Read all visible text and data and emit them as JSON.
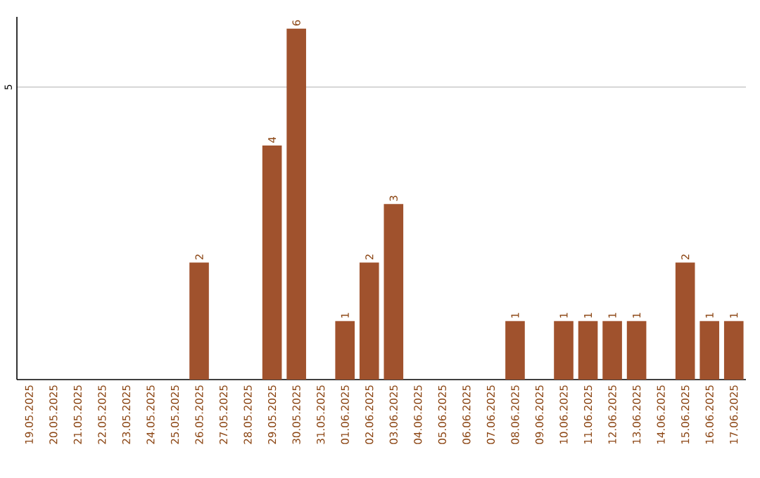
{
  "chart_data": {
    "type": "bar",
    "categories": [
      "19.05.2025",
      "20.05.2025",
      "21.05.2025",
      "22.05.2025",
      "23.05.2025",
      "24.05.2025",
      "25.05.2025",
      "26.05.2025",
      "27.05.2025",
      "28.05.2025",
      "29.05.2025",
      "30.05.2025",
      "31.05.2025",
      "01.06.2025",
      "02.06.2025",
      "03.06.2025",
      "04.06.2025",
      "05.06.2025",
      "06.06.2025",
      "07.06.2025",
      "08.06.2025",
      "09.06.2025",
      "10.06.2025",
      "11.06.2025",
      "12.06.2025",
      "13.06.2025",
      "14.06.2025",
      "15.06.2025",
      "16.06.2025",
      "17.06.2025"
    ],
    "values": [
      0,
      0,
      0,
      0,
      0,
      0,
      0,
      2,
      0,
      0,
      4,
      6,
      0,
      1,
      2,
      3,
      0,
      0,
      0,
      0,
      1,
      0,
      1,
      1,
      1,
      1,
      0,
      2,
      1,
      1
    ],
    "value_labels": [
      null,
      null,
      null,
      null,
      null,
      null,
      null,
      "2",
      null,
      null,
      "4",
      "6",
      null,
      "1",
      "2",
      "3",
      null,
      null,
      null,
      null,
      "1",
      null,
      "1",
      "1",
      "1",
      "1",
      null,
      "2",
      "1",
      "1"
    ],
    "color": "#a0522d",
    "ylim": [
      0,
      6.2
    ],
    "yticks": [
      5
    ],
    "grid": "y"
  }
}
